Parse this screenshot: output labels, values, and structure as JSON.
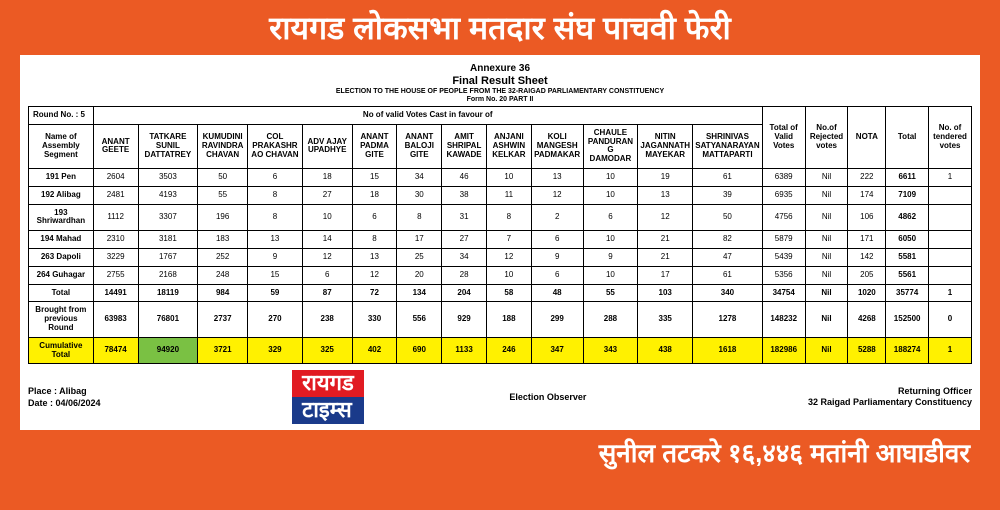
{
  "banner_top": "रायगड लोकसभा मतदार संघ पाचवी फेरी",
  "banner_bot": "सुनील तटकरे १६,४४६ मतांनी आघाडीवर",
  "logo": {
    "top": "रायगड",
    "bot": "टाइम्स"
  },
  "header": {
    "annex": "Annexure 36",
    "frs": "Final Result Sheet",
    "sub1": "ELECTION TO THE HOUSE OF PEOPLE FROM THE 32-RAIGAD PARLIAMENTARY CONSTITUENCY",
    "sub2": "Form No. 20    PART II"
  },
  "round": "Round No. : 5",
  "span_label": "No of valid Votes Cast in favour of",
  "colhead": {
    "seg": "Name of Assembly Segment",
    "c1": "ANANT GEETE",
    "c2": "TATKARE SUNIL DATTATREY",
    "c3": "KUMUDINI RAVINDRA CHAVAN",
    "c4": "COL PRAKASHRAO CHAVAN",
    "c5": "ADV AJAY UPADHYE",
    "c6": "ANANT PADMA GITE",
    "c7": "ANANT BALOJI GITE",
    "c8": "AMIT SHRIPAL KAWADE",
    "c9": "ANJANI ASHWIN KELKAR",
    "c10": "KOLI MANGESH PADMAKAR",
    "c11": "CHAULE PANDURANG DAMODAR",
    "c12": "NITIN JAGANNATH MAYEKAR",
    "c13": "SHRINIVAS SATYANARAYAN MATTAPARTI",
    "tvv": "Total of Valid Votes",
    "rej": "No.of Rejected votes",
    "nota": "NOTA",
    "tot": "Total",
    "tend": "No. of tendered votes"
  },
  "rows": [
    {
      "seg": "191 Pen",
      "v": [
        "2604",
        "3503",
        "50",
        "6",
        "18",
        "15",
        "34",
        "46",
        "10",
        "13",
        "10",
        "19",
        "61",
        "6389",
        "Nil",
        "222",
        "6611",
        "1"
      ]
    },
    {
      "seg": "192 Alibag",
      "v": [
        "2481",
        "4193",
        "55",
        "8",
        "27",
        "18",
        "30",
        "38",
        "11",
        "12",
        "10",
        "13",
        "39",
        "6935",
        "Nil",
        "174",
        "7109",
        ""
      ]
    },
    {
      "seg": "193 Shriwardhan",
      "v": [
        "1112",
        "3307",
        "196",
        "8",
        "10",
        "6",
        "8",
        "31",
        "8",
        "2",
        "6",
        "12",
        "50",
        "4756",
        "Nil",
        "106",
        "4862",
        ""
      ]
    },
    {
      "seg": "194 Mahad",
      "v": [
        "2310",
        "3181",
        "183",
        "13",
        "14",
        "8",
        "17",
        "27",
        "7",
        "6",
        "10",
        "21",
        "82",
        "5879",
        "Nil",
        "171",
        "6050",
        ""
      ]
    },
    {
      "seg": "263 Dapoli",
      "v": [
        "3229",
        "1767",
        "252",
        "9",
        "12",
        "13",
        "25",
        "34",
        "12",
        "9",
        "9",
        "21",
        "47",
        "5439",
        "Nil",
        "142",
        "5581",
        ""
      ]
    },
    {
      "seg": "264 Guhagar",
      "v": [
        "2755",
        "2168",
        "248",
        "15",
        "6",
        "12",
        "20",
        "28",
        "10",
        "6",
        "10",
        "17",
        "61",
        "5356",
        "Nil",
        "205",
        "5561",
        ""
      ]
    }
  ],
  "total": {
    "seg": "Total",
    "v": [
      "14491",
      "18119",
      "984",
      "59",
      "87",
      "72",
      "134",
      "204",
      "58",
      "48",
      "55",
      "103",
      "340",
      "34754",
      "Nil",
      "1020",
      "35774",
      "1"
    ]
  },
  "brought": {
    "seg": "Brought from previous Round",
    "v": [
      "63983",
      "76801",
      "2737",
      "270",
      "238",
      "330",
      "556",
      "929",
      "188",
      "299",
      "288",
      "335",
      "1278",
      "148232",
      "Nil",
      "4268",
      "152500",
      "0"
    ]
  },
  "cum": {
    "seg": "Cumulative Total",
    "v": [
      "78474",
      "94920",
      "3721",
      "329",
      "325",
      "402",
      "690",
      "1133",
      "246",
      "347",
      "343",
      "438",
      "1618",
      "182986",
      "Nil",
      "5288",
      "188274",
      "1"
    ]
  },
  "footer": {
    "place1": "Place :  Alibag",
    "place2": "Date :  04/06/2024",
    "obs": "Election Observer",
    "ro1": "Returning Officer",
    "ro2": "32 Raigad Parliamentary Constituency"
  },
  "colors": {
    "brand": "#eb5a24",
    "yellow": "#fff100",
    "green": "#7ac143"
  }
}
